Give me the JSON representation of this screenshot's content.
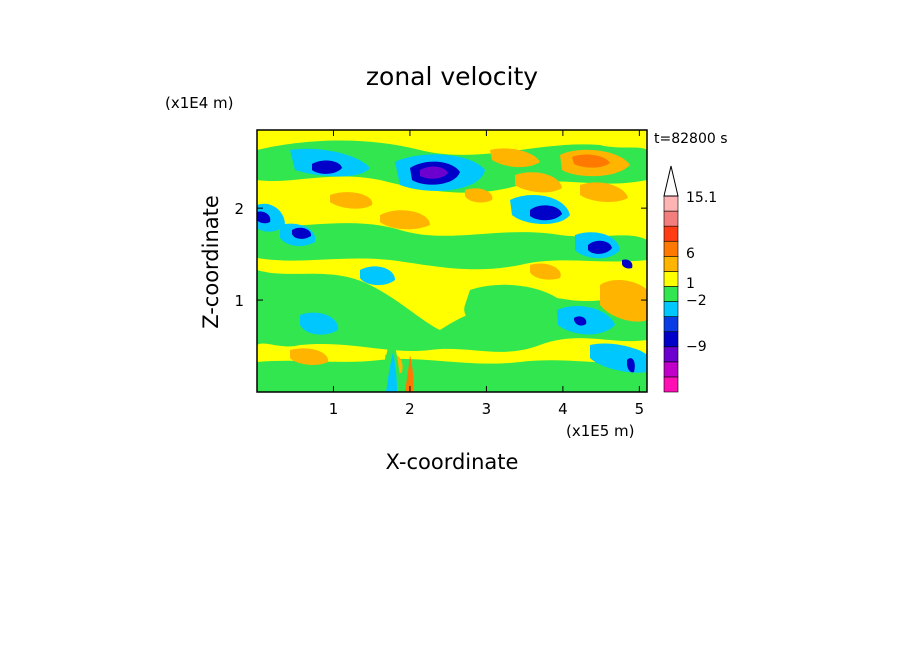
{
  "chart_data": {
    "type": "heatmap",
    "title": "zonal velocity",
    "xlabel": "X-coordinate",
    "ylabel": "Z-coordinate",
    "x_unit": "(x1E5 m)",
    "y_unit": "(x1E4 m)",
    "time_label": "t=82800 s",
    "xlim": [
      0,
      5.1
    ],
    "ylim": [
      0,
      2.85
    ],
    "x_ticks": [
      1,
      2,
      3,
      4,
      5
    ],
    "y_ticks": [
      1,
      2
    ],
    "colorbar": {
      "labels": [
        "15.1",
        "6",
        "1",
        "−2",
        "−9"
      ],
      "label_values": [
        15.1,
        6,
        1,
        -2,
        -9
      ],
      "colors": [
        "#ff0fb4",
        "#c000c8",
        "#6c00ce",
        "#0000c8",
        "#0a3ce6",
        "#00c8ff",
        "#32e650",
        "#ffff00",
        "#ffb400",
        "#ff7800",
        "#ff3c14",
        "#f37e7e",
        "#ffb4b4",
        "#ffffff"
      ],
      "extend": "max"
    },
    "features": [
      {
        "x": 0.95,
        "z": 2.55,
        "value": -6
      },
      {
        "x": 2.3,
        "z": 2.38,
        "value": -9
      },
      {
        "x": 3.7,
        "z": 1.95,
        "value": -6
      },
      {
        "x": 4.45,
        "z": 1.58,
        "value": -6
      },
      {
        "x": 0.55,
        "z": 1.75,
        "value": -6
      },
      {
        "x": 0.05,
        "z": 1.9,
        "value": -6
      },
      {
        "x": 4.4,
        "z": 2.55,
        "value": 5
      },
      {
        "x": 3.55,
        "z": 2.35,
        "value": 4
      },
      {
        "x": 3.0,
        "z": 2.6,
        "value": 4
      },
      {
        "x": 4.2,
        "z": 1.0,
        "value": 3
      },
      {
        "x": 1.7,
        "z": 0.15,
        "value": 3
      },
      {
        "x": 1.25,
        "z": 0.75,
        "value": 3
      },
      {
        "x": 3.0,
        "z": 1.0,
        "value": -1
      },
      {
        "x": 2.55,
        "z": 1.05,
        "value": -1
      },
      {
        "x": 3.9,
        "z": 0.75,
        "value": -4
      },
      {
        "x": 4.2,
        "z": 1.3,
        "value": -3
      },
      {
        "x": 0.8,
        "z": 1.0,
        "value": -3
      },
      {
        "x": 4.9,
        "z": 0.3,
        "value": -6
      },
      {
        "x": 1.85,
        "z": 0.9,
        "value": -2
      }
    ]
  }
}
